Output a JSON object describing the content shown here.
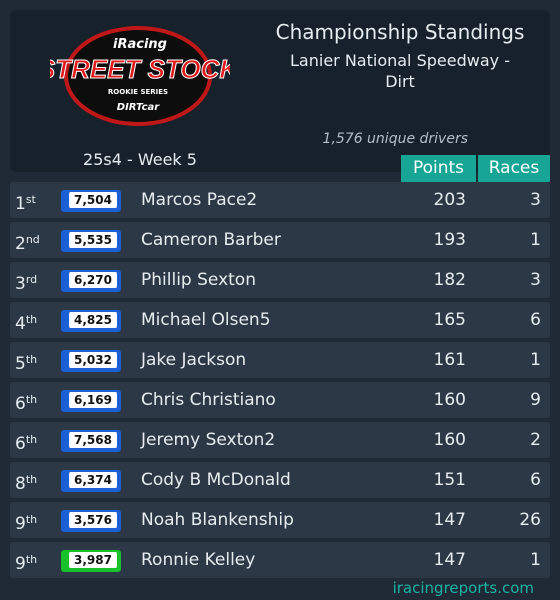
{
  "logo": {
    "brand": "iRacing",
    "series": "STREET STOCK",
    "tier": "ROOKIE SERIES",
    "sanction": "DIRTcar"
  },
  "header": {
    "title": "Championship Standings",
    "track": "Lanier National Speedway - Dirt",
    "season": "25s4 - Week 5",
    "drivers": "1,576 unique drivers"
  },
  "table": {
    "columns": [
      "Points",
      "Races"
    ],
    "rows": [
      {
        "rank": "1",
        "suffix": "st",
        "irating": "7,504",
        "license_color": "#1a5fd6",
        "name": "Marcos Pace2",
        "points": "203",
        "races": "3"
      },
      {
        "rank": "2",
        "suffix": "nd",
        "irating": "5,535",
        "license_color": "#1a5fd6",
        "name": "Cameron Barber",
        "points": "193",
        "races": "1"
      },
      {
        "rank": "3",
        "suffix": "rd",
        "irating": "6,270",
        "license_color": "#1a5fd6",
        "name": "Phillip Sexton",
        "points": "182",
        "races": "3"
      },
      {
        "rank": "4",
        "suffix": "th",
        "irating": "4,825",
        "license_color": "#1a5fd6",
        "name": "Michael Olsen5",
        "points": "165",
        "races": "6"
      },
      {
        "rank": "5",
        "suffix": "th",
        "irating": "5,032",
        "license_color": "#1a5fd6",
        "name": "Jake Jackson",
        "points": "161",
        "races": "1"
      },
      {
        "rank": "6",
        "suffix": "th",
        "irating": "6,169",
        "license_color": "#1a5fd6",
        "name": "Chris Christiano",
        "points": "160",
        "races": "9"
      },
      {
        "rank": "6",
        "suffix": "th",
        "irating": "7,568",
        "license_color": "#1a5fd6",
        "name": "Jeremy Sexton2",
        "points": "160",
        "races": "2"
      },
      {
        "rank": "8",
        "suffix": "th",
        "irating": "6,374",
        "license_color": "#1a5fd6",
        "name": "Cody B McDonald",
        "points": "151",
        "races": "6"
      },
      {
        "rank": "9",
        "suffix": "th",
        "irating": "3,576",
        "license_color": "#1a5fd6",
        "name": "Noah Blankenship",
        "points": "147",
        "races": "26"
      },
      {
        "rank": "9",
        "suffix": "th",
        "irating": "3,987",
        "license_color": "#19c22a",
        "name": "Ronnie Kelley",
        "points": "147",
        "races": "1"
      }
    ]
  },
  "footer": {
    "site": "iracingreports.com"
  }
}
